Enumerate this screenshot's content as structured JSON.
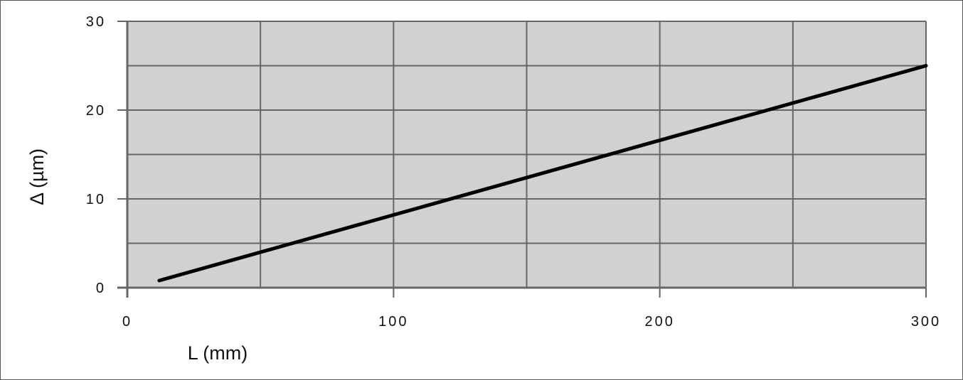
{
  "chart_data": {
    "type": "line",
    "title": "",
    "xlabel": "L (mm)",
    "ylabel": "Δ (µm)",
    "xlim": [
      0,
      300
    ],
    "ylim": [
      0,
      30
    ],
    "xticks": [
      0,
      100,
      200,
      300
    ],
    "yticks": [
      0,
      10,
      20,
      30
    ],
    "xgrid_step": 50,
    "ygrid_step": 5,
    "grid": true,
    "colors": {
      "plot_background": "#d0d2d1",
      "grid": "#666666",
      "line": "#000000"
    },
    "series": [
      {
        "x": [
          12,
          300
        ],
        "y": [
          0.8,
          25
        ]
      }
    ]
  }
}
